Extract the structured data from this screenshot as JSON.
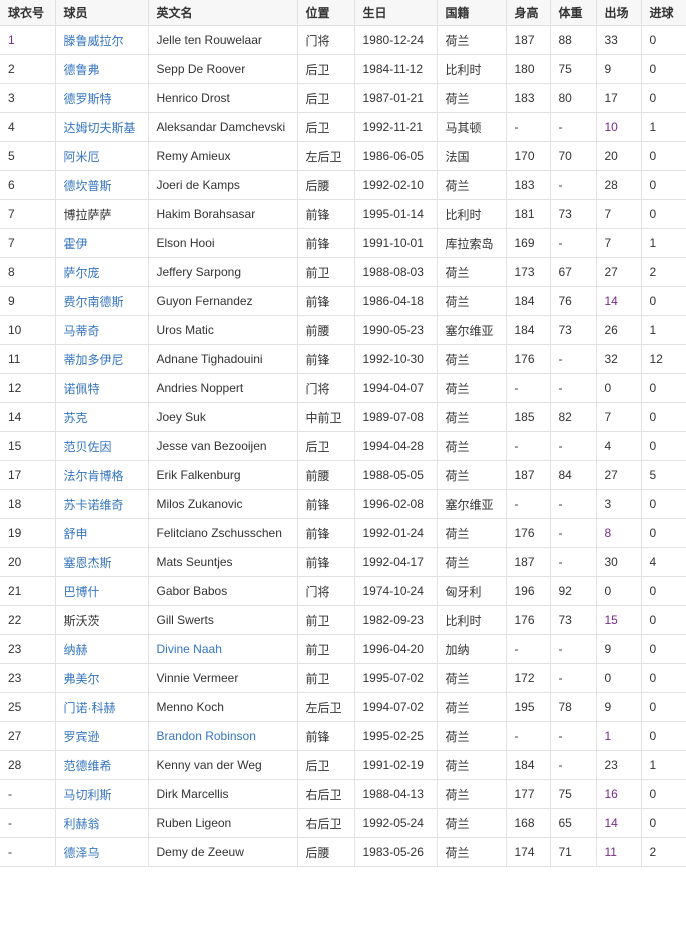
{
  "colors": {
    "link": "#3575c0",
    "visited": "#7a2a8a",
    "text": "#333333",
    "header_bg": "#f7f7f7"
  },
  "columns": [
    "球衣号",
    "球员",
    "英文名",
    "位置",
    "生日",
    "国籍",
    "身高",
    "体重",
    "出场",
    "进球"
  ],
  "rows": [
    {
      "cells": [
        "1",
        "滕鲁威拉尔",
        "Jelle ten Rouwelaar",
        "门将",
        "1980-12-24",
        "荷兰",
        "187",
        "88",
        "33",
        "0"
      ],
      "style": {
        "0": "visited",
        "1": "link"
      }
    },
    {
      "cells": [
        "2",
        "德鲁弗",
        "Sepp De Roover",
        "后卫",
        "1984-11-12",
        "比利时",
        "180",
        "75",
        "9",
        "0"
      ],
      "style": {
        "1": "link"
      }
    },
    {
      "cells": [
        "3",
        "德罗斯特",
        "Henrico Drost",
        "后卫",
        "1987-01-21",
        "荷兰",
        "183",
        "80",
        "17",
        "0"
      ],
      "style": {
        "1": "link"
      }
    },
    {
      "cells": [
        "4",
        "达姆切夫斯基",
        "Aleksandar Damchevski",
        "后卫",
        "1992-11-21",
        "马其顿",
        "-",
        "-",
        "10",
        "1"
      ],
      "style": {
        "1": "link",
        "8": "visited"
      }
    },
    {
      "cells": [
        "5",
        "阿米厄",
        "Remy Amieux",
        "左后卫",
        "1986-06-05",
        "法国",
        "170",
        "70",
        "20",
        "0"
      ],
      "style": {
        "1": "link"
      }
    },
    {
      "cells": [
        "6",
        "德坎普斯",
        "Joeri de Kamps",
        "后腰",
        "1992-02-10",
        "荷兰",
        "183",
        "-",
        "28",
        "0"
      ],
      "style": {
        "1": "link"
      }
    },
    {
      "cells": [
        "7",
        "博拉萨萨",
        "Hakim Borahsasar",
        "前锋",
        "1995-01-14",
        "比利时",
        "181",
        "73",
        "7",
        "0"
      ],
      "style": {}
    },
    {
      "cells": [
        "7",
        "霍伊",
        "Elson Hooi",
        "前锋",
        "1991-10-01",
        "库拉索岛",
        "169",
        "-",
        "7",
        "1"
      ],
      "style": {
        "1": "link"
      }
    },
    {
      "cells": [
        "8",
        "萨尔庞",
        "Jeffery Sarpong",
        "前卫",
        "1988-08-03",
        "荷兰",
        "173",
        "67",
        "27",
        "2"
      ],
      "style": {
        "1": "link"
      }
    },
    {
      "cells": [
        "9",
        "费尔南德斯",
        "Guyon Fernandez",
        "前锋",
        "1986-04-18",
        "荷兰",
        "184",
        "76",
        "14",
        "0"
      ],
      "style": {
        "1": "link",
        "8": "visited"
      }
    },
    {
      "cells": [
        "10",
        "马蒂奇",
        "Uros Matic",
        "前腰",
        "1990-05-23",
        "塞尔维亚",
        "184",
        "73",
        "26",
        "1"
      ],
      "style": {
        "1": "link"
      }
    },
    {
      "cells": [
        "11",
        "蒂加多伊尼",
        "Adnane Tighadouini",
        "前锋",
        "1992-10-30",
        "荷兰",
        "176",
        "-",
        "32",
        "12"
      ],
      "style": {
        "1": "link"
      }
    },
    {
      "cells": [
        "12",
        "诺佩特",
        "Andries Noppert",
        "门将",
        "1994-04-07",
        "荷兰",
        "-",
        "-",
        "0",
        "0"
      ],
      "style": {
        "1": "link"
      }
    },
    {
      "cells": [
        "14",
        "苏克",
        "Joey Suk",
        "中前卫",
        "1989-07-08",
        "荷兰",
        "185",
        "82",
        "7",
        "0"
      ],
      "style": {
        "1": "link"
      }
    },
    {
      "cells": [
        "15",
        "范贝佐因",
        "Jesse van Bezooijen",
        "后卫",
        "1994-04-28",
        "荷兰",
        "-",
        "-",
        "4",
        "0"
      ],
      "style": {
        "1": "link"
      }
    },
    {
      "cells": [
        "17",
        "法尔肯博格",
        "Erik Falkenburg",
        "前腰",
        "1988-05-05",
        "荷兰",
        "187",
        "84",
        "27",
        "5"
      ],
      "style": {
        "1": "link"
      }
    },
    {
      "cells": [
        "18",
        "苏卡诺维奇",
        "Milos Zukanovic",
        "前锋",
        "1996-02-08",
        "塞尔维亚",
        "-",
        "-",
        "3",
        "0"
      ],
      "style": {
        "1": "link"
      }
    },
    {
      "cells": [
        "19",
        "舒申",
        "Felitciano Zschusschen",
        "前锋",
        "1992-01-24",
        "荷兰",
        "176",
        "-",
        "8",
        "0"
      ],
      "style": {
        "1": "link",
        "8": "visited"
      }
    },
    {
      "cells": [
        "20",
        "塞恩杰斯",
        "Mats Seuntjes",
        "前锋",
        "1992-04-17",
        "荷兰",
        "187",
        "-",
        "30",
        "4"
      ],
      "style": {
        "1": "link"
      }
    },
    {
      "cells": [
        "21",
        "巴博什",
        "Gabor Babos",
        "门将",
        "1974-10-24",
        "匈牙利",
        "196",
        "92",
        "0",
        "0"
      ],
      "style": {
        "1": "link"
      }
    },
    {
      "cells": [
        "22",
        "斯沃茨",
        "Gill Swerts",
        "前卫",
        "1982-09-23",
        "比利时",
        "176",
        "73",
        "15",
        "0"
      ],
      "style": {
        "8": "visited"
      }
    },
    {
      "cells": [
        "23",
        "纳赫",
        "Divine Naah",
        "前卫",
        "1996-04-20",
        "加纳",
        "-",
        "-",
        "9",
        "0"
      ],
      "style": {
        "1": "link",
        "2": "link"
      }
    },
    {
      "cells": [
        "23",
        "弗美尔",
        "Vinnie Vermeer",
        "前卫",
        "1995-07-02",
        "荷兰",
        "172",
        "-",
        "0",
        "0"
      ],
      "style": {
        "1": "link"
      }
    },
    {
      "cells": [
        "25",
        "门诺·科赫",
        "Menno Koch",
        "左后卫",
        "1994-07-02",
        "荷兰",
        "195",
        "78",
        "9",
        "0"
      ],
      "style": {
        "1": "link"
      }
    },
    {
      "cells": [
        "27",
        "罗宾逊",
        "Brandon Robinson",
        "前锋",
        "1995-02-25",
        "荷兰",
        "-",
        "-",
        "1",
        "0"
      ],
      "style": {
        "1": "link",
        "2": "link",
        "8": "visited"
      }
    },
    {
      "cells": [
        "28",
        "范德维希",
        "Kenny van der Weg",
        "后卫",
        "1991-02-19",
        "荷兰",
        "184",
        "-",
        "23",
        "1"
      ],
      "style": {
        "1": "link"
      }
    },
    {
      "cells": [
        "-",
        "马切利斯",
        "Dirk Marcellis",
        "右后卫",
        "1988-04-13",
        "荷兰",
        "177",
        "75",
        "16",
        "0"
      ],
      "style": {
        "1": "link",
        "8": "visited"
      }
    },
    {
      "cells": [
        "-",
        "利赫翁",
        "Ruben Ligeon",
        "右后卫",
        "1992-05-24",
        "荷兰",
        "168",
        "65",
        "14",
        "0"
      ],
      "style": {
        "1": "link",
        "8": "visited"
      }
    },
    {
      "cells": [
        "-",
        "德泽乌",
        "Demy de Zeeuw",
        "后腰",
        "1983-05-26",
        "荷兰",
        "174",
        "71",
        "11",
        "2"
      ],
      "style": {
        "1": "link",
        "8": "visited"
      }
    }
  ]
}
